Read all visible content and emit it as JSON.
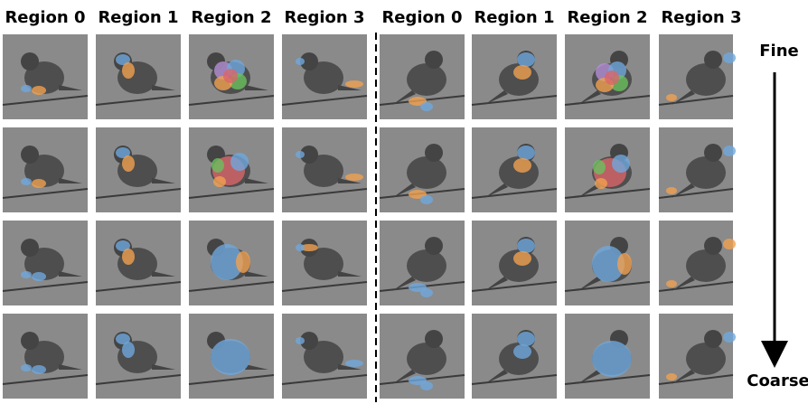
{
  "headers": {
    "left": [
      "Region 0",
      "Region 1",
      "Region 2",
      "Region 3"
    ],
    "right": [
      "Region 0",
      "Region 1",
      "Region 2",
      "Region 3"
    ]
  },
  "scale": {
    "fine": "Fine",
    "coarse": "Coarse"
  }
}
